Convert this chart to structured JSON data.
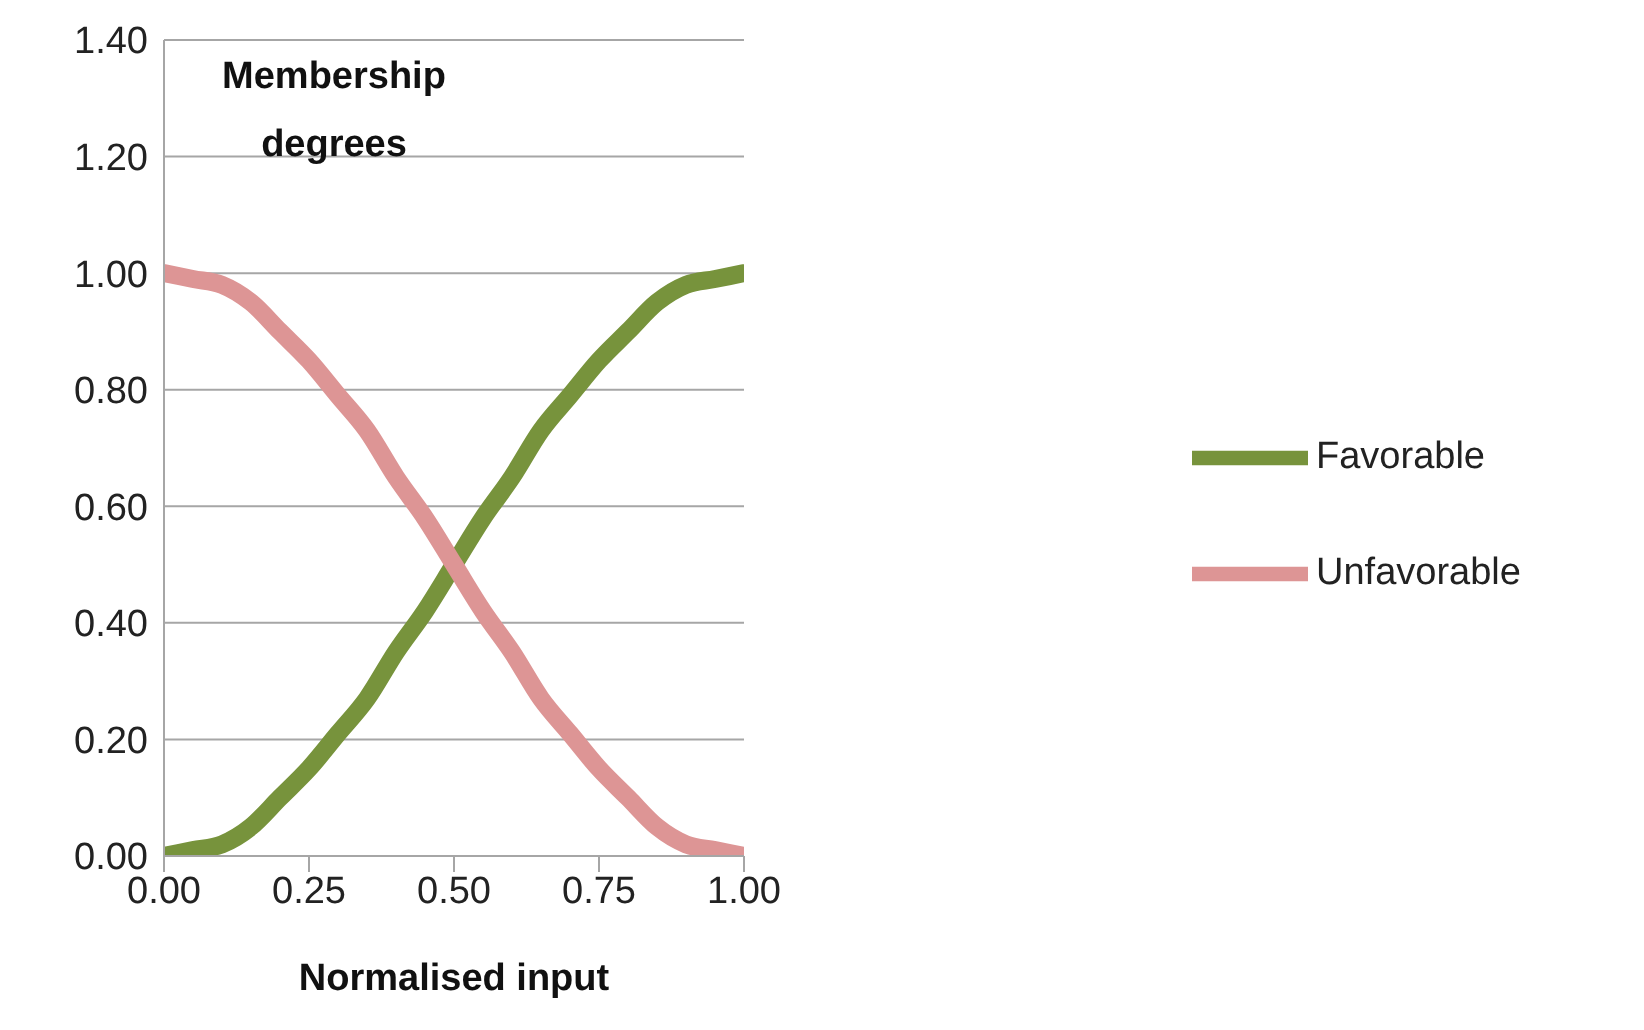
{
  "chart_data": {
    "type": "line",
    "xlabel": "Normalised input",
    "ylabel": "Membership degrees",
    "x": [
      0,
      0.05,
      0.1,
      0.15,
      0.2,
      0.25,
      0.3,
      0.35,
      0.4,
      0.45,
      0.5,
      0.55,
      0.6,
      0.65,
      0.7,
      0.75,
      0.8,
      0.85,
      0.9,
      0.95,
      1
    ],
    "series": [
      {
        "name": "Favorable",
        "color": "#77933c",
        "values": [
          0,
          0.01,
          0.02,
          0.05,
          0.1,
          0.15,
          0.21,
          0.27,
          0.35,
          0.42,
          0.5,
          0.58,
          0.65,
          0.73,
          0.79,
          0.85,
          0.9,
          0.95,
          0.98,
          0.99,
          1
        ]
      },
      {
        "name": "Unfavorable",
        "color": "#dd9595",
        "values": [
          1,
          0.99,
          0.98,
          0.95,
          0.9,
          0.85,
          0.79,
          0.73,
          0.65,
          0.58,
          0.5,
          0.42,
          0.35,
          0.27,
          0.21,
          0.15,
          0.1,
          0.05,
          0.02,
          0.01,
          0
        ]
      }
    ],
    "xlim": [
      0,
      1
    ],
    "xticks": [
      {
        "value": 0,
        "label": "0.00"
      },
      {
        "value": 0.25,
        "label": "0.25"
      },
      {
        "value": 0.5,
        "label": "0.50"
      },
      {
        "value": 0.75,
        "label": "0.75"
      },
      {
        "value": 1,
        "label": "1.00"
      }
    ],
    "ylim": [
      0,
      1.4
    ],
    "yticks": [
      {
        "value": 0,
        "label": "0.00"
      },
      {
        "value": 0.2,
        "label": "0.20"
      },
      {
        "value": 0.4,
        "label": "0.40"
      },
      {
        "value": 0.6,
        "label": "0.60"
      },
      {
        "value": 0.8,
        "label": "0.80"
      },
      {
        "value": 1,
        "label": "1.00"
      },
      {
        "value": 1.2,
        "label": "1.20"
      },
      {
        "value": 1.4,
        "label": "1.40"
      }
    ],
    "grid": "y",
    "legend": "right",
    "marker": "none",
    "line_style": "solid"
  }
}
